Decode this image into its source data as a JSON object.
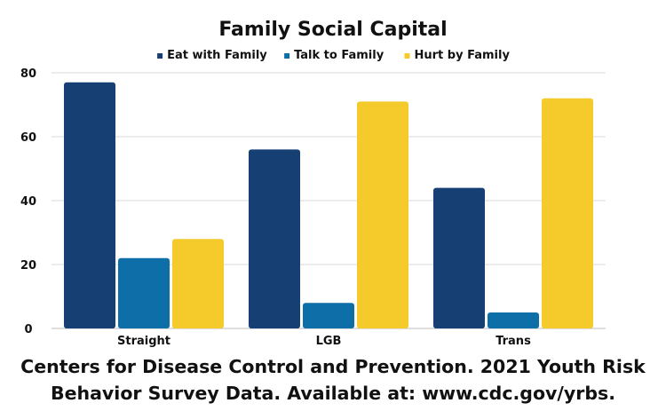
{
  "chart_data": {
    "type": "bar",
    "title": "Family Social Capital",
    "xlabel": "",
    "ylabel": "",
    "categories": [
      "Straight",
      "LGB",
      "Trans"
    ],
    "series": [
      {
        "name": "Eat with Family",
        "values": [
          77,
          56,
          44
        ],
        "color": "#163f73"
      },
      {
        "name": "Talk to Family",
        "values": [
          22,
          8,
          5
        ],
        "color": "#0e6fa8"
      },
      {
        "name": "Hurt by Family",
        "values": [
          28,
          71,
          72
        ],
        "color": "#f4cb2a"
      }
    ],
    "ylim": [
      0,
      80
    ],
    "yticks": [
      0,
      20,
      40,
      60,
      80
    ],
    "grid": true,
    "legend_position": "top-center"
  },
  "source_note": {
    "line1": "Centers for Disease Control and Prevention. 2021 Youth Risk",
    "line2": "Behavior Survey Data. Available at: www.cdc.gov/yrbs."
  }
}
